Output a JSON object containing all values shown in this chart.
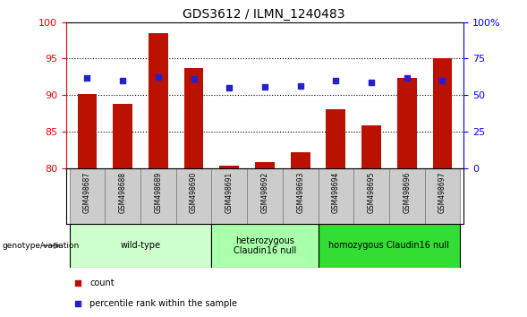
{
  "title": "GDS3612 / ILMN_1240483",
  "samples": [
    "GSM498687",
    "GSM498688",
    "GSM498689",
    "GSM498690",
    "GSM498691",
    "GSM498692",
    "GSM498693",
    "GSM498694",
    "GSM498695",
    "GSM498696",
    "GSM498697"
  ],
  "bar_values": [
    90.1,
    88.8,
    98.5,
    93.7,
    80.3,
    80.8,
    82.2,
    88.1,
    85.8,
    92.3,
    95.1
  ],
  "dot_values": [
    92.3,
    92.0,
    92.5,
    92.2,
    91.0,
    91.1,
    91.3,
    92.0,
    91.8,
    92.3,
    92.0
  ],
  "ylim_left": [
    80,
    100
  ],
  "ylim_right": [
    0,
    100
  ],
  "yticks_left": [
    80,
    85,
    90,
    95,
    100
  ],
  "yticks_right": [
    0,
    25,
    50,
    75,
    100
  ],
  "ytick_labels_right": [
    "0",
    "25",
    "50",
    "75",
    "100%"
  ],
  "bar_color": "#BB1100",
  "dot_color": "#2222CC",
  "groups": [
    {
      "label": "wild-type",
      "indices": [
        0,
        1,
        2,
        3
      ],
      "color": "#CCFFCC"
    },
    {
      "label": "heterozygous\nClaudin16 null",
      "indices": [
        4,
        5,
        6
      ],
      "color": "#AAFFAA"
    },
    {
      "label": "homozygous Claudin16 null",
      "indices": [
        7,
        8,
        9,
        10
      ],
      "color": "#33DD33"
    }
  ],
  "legend_count_label": "count",
  "legend_percentile_label": "percentile rank within the sample",
  "genotype_label": "genotype/variation",
  "label_bg": "#CCCCCC",
  "label_border": "#888888"
}
